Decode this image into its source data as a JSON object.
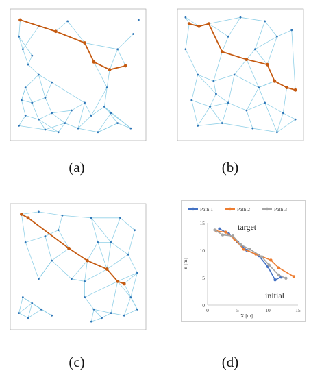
{
  "captions": {
    "a": "(a)",
    "b": "(b)",
    "c": "(c)",
    "d": "(d)"
  },
  "colors": {
    "edge": "#7ec8e3",
    "node": "#2e75b6",
    "path": "#c55a11"
  },
  "networks": {
    "a": {
      "nodes": [
        [
          0.06,
          0.07
        ],
        [
          0.05,
          0.2
        ],
        [
          0.33,
          0.16
        ],
        [
          0.55,
          0.25
        ],
        [
          0.62,
          0.4
        ],
        [
          0.74,
          0.46
        ],
        [
          0.86,
          0.43
        ],
        [
          0.08,
          0.3
        ],
        [
          0.12,
          0.42
        ],
        [
          0.2,
          0.5
        ],
        [
          0.3,
          0.56
        ],
        [
          0.1,
          0.6
        ],
        [
          0.07,
          0.7
        ],
        [
          0.15,
          0.72
        ],
        [
          0.25,
          0.68
        ],
        [
          0.1,
          0.82
        ],
        [
          0.2,
          0.85
        ],
        [
          0.3,
          0.8
        ],
        [
          0.4,
          0.88
        ],
        [
          0.5,
          0.92
        ],
        [
          0.6,
          0.82
        ],
        [
          0.7,
          0.75
        ],
        [
          0.8,
          0.88
        ],
        [
          0.9,
          0.92
        ],
        [
          0.72,
          0.6
        ],
        [
          0.8,
          0.3
        ],
        [
          0.92,
          0.18
        ],
        [
          0.42,
          0.08
        ],
        [
          0.2,
          0.12
        ],
        [
          0.15,
          0.35
        ],
        [
          0.35,
          0.95
        ],
        [
          0.55,
          0.72
        ],
        [
          0.65,
          0.95
        ],
        [
          0.75,
          0.8
        ],
        [
          0.45,
          0.78
        ],
        [
          0.25,
          0.93
        ],
        [
          0.05,
          0.9
        ],
        [
          0.96,
          0.07
        ]
      ],
      "edges": [
        [
          0,
          1
        ],
        [
          1,
          7
        ],
        [
          7,
          8
        ],
        [
          8,
          9
        ],
        [
          9,
          10
        ],
        [
          10,
          14
        ],
        [
          11,
          12
        ],
        [
          12,
          13
        ],
        [
          13,
          14
        ],
        [
          12,
          15
        ],
        [
          15,
          16
        ],
        [
          16,
          17
        ],
        [
          17,
          18
        ],
        [
          18,
          19
        ],
        [
          19,
          20
        ],
        [
          20,
          21
        ],
        [
          21,
          22
        ],
        [
          22,
          23
        ],
        [
          21,
          24
        ],
        [
          24,
          5
        ],
        [
          5,
          25
        ],
        [
          25,
          26
        ],
        [
          25,
          3
        ],
        [
          3,
          27
        ],
        [
          27,
          2
        ],
        [
          2,
          28
        ],
        [
          28,
          7
        ],
        [
          29,
          8
        ],
        [
          29,
          1
        ],
        [
          9,
          11
        ],
        [
          11,
          13
        ],
        [
          14,
          17
        ],
        [
          16,
          30
        ],
        [
          30,
          18
        ],
        [
          19,
          32
        ],
        [
          32,
          22
        ],
        [
          20,
          31
        ],
        [
          31,
          34
        ],
        [
          34,
          18
        ],
        [
          21,
          33
        ],
        [
          33,
          23
        ],
        [
          33,
          32
        ],
        [
          24,
          4
        ],
        [
          4,
          3
        ],
        [
          10,
          31
        ],
        [
          13,
          16
        ],
        [
          15,
          36
        ],
        [
          36,
          35
        ],
        [
          35,
          30
        ],
        [
          17,
          34
        ],
        [
          20,
          24
        ],
        [
          22,
          32
        ],
        [
          6,
          5
        ],
        [
          6,
          25
        ],
        [
          19,
          31
        ],
        [
          9,
          14
        ],
        [
          12,
          11
        ],
        [
          16,
          35
        ],
        [
          23,
          21
        ],
        [
          18,
          35
        ]
      ],
      "path": [
        0,
        2,
        3,
        4,
        5,
        6
      ]
    },
    "b": {
      "nodes": [
        [
          0.08,
          0.1
        ],
        [
          0.16,
          0.12
        ],
        [
          0.24,
          0.1
        ],
        [
          0.35,
          0.32
        ],
        [
          0.55,
          0.38
        ],
        [
          0.72,
          0.42
        ],
        [
          0.78,
          0.55
        ],
        [
          0.88,
          0.6
        ],
        [
          0.95,
          0.62
        ],
        [
          0.05,
          0.3
        ],
        [
          0.15,
          0.5
        ],
        [
          0.28,
          0.55
        ],
        [
          0.45,
          0.5
        ],
        [
          0.62,
          0.3
        ],
        [
          0.8,
          0.2
        ],
        [
          0.92,
          0.15
        ],
        [
          0.5,
          0.05
        ],
        [
          0.7,
          0.08
        ],
        [
          0.1,
          0.7
        ],
        [
          0.25,
          0.75
        ],
        [
          0.4,
          0.72
        ],
        [
          0.55,
          0.78
        ],
        [
          0.7,
          0.72
        ],
        [
          0.85,
          0.8
        ],
        [
          0.15,
          0.9
        ],
        [
          0.35,
          0.88
        ],
        [
          0.6,
          0.92
        ],
        [
          0.8,
          0.95
        ],
        [
          0.95,
          0.85
        ],
        [
          0.4,
          0.2
        ],
        [
          0.65,
          0.6
        ],
        [
          0.3,
          0.65
        ],
        [
          0.05,
          0.05
        ]
      ],
      "edges": [
        [
          0,
          1
        ],
        [
          1,
          2
        ],
        [
          2,
          16
        ],
        [
          16,
          17
        ],
        [
          17,
          14
        ],
        [
          14,
          15
        ],
        [
          0,
          9
        ],
        [
          9,
          10
        ],
        [
          10,
          11
        ],
        [
          11,
          12
        ],
        [
          12,
          4
        ],
        [
          4,
          13
        ],
        [
          13,
          14
        ],
        [
          5,
          14
        ],
        [
          5,
          6
        ],
        [
          6,
          7
        ],
        [
          7,
          8
        ],
        [
          8,
          15
        ],
        [
          10,
          18
        ],
        [
          18,
          19
        ],
        [
          19,
          20
        ],
        [
          20,
          21
        ],
        [
          21,
          22
        ],
        [
          22,
          23
        ],
        [
          18,
          24
        ],
        [
          24,
          25
        ],
        [
          25,
          26
        ],
        [
          26,
          27
        ],
        [
          27,
          28
        ],
        [
          23,
          28
        ],
        [
          11,
          31
        ],
        [
          31,
          20
        ],
        [
          12,
          30
        ],
        [
          30,
          22
        ],
        [
          30,
          6
        ],
        [
          19,
          25
        ],
        [
          20,
          25
        ],
        [
          21,
          26
        ],
        [
          22,
          27
        ],
        [
          23,
          27
        ],
        [
          3,
          29
        ],
        [
          29,
          16
        ],
        [
          3,
          11
        ],
        [
          12,
          20
        ],
        [
          13,
          5
        ],
        [
          6,
          30
        ],
        [
          24,
          19
        ],
        [
          31,
          19
        ],
        [
          2,
          29
        ],
        [
          13,
          17
        ],
        [
          4,
          30
        ],
        [
          0,
          32
        ],
        [
          32,
          1
        ],
        [
          10,
          31
        ],
        [
          21,
          30
        ],
        [
          23,
          7
        ]
      ],
      "path": [
        0,
        1,
        2,
        3,
        4,
        5,
        6,
        7,
        8
      ]
    },
    "c": {
      "nodes": [
        [
          0.07,
          0.07
        ],
        [
          0.12,
          0.1
        ],
        [
          0.43,
          0.35
        ],
        [
          0.57,
          0.45
        ],
        [
          0.72,
          0.52
        ],
        [
          0.8,
          0.62
        ],
        [
          0.85,
          0.64
        ],
        [
          0.2,
          0.05
        ],
        [
          0.38,
          0.08
        ],
        [
          0.6,
          0.1
        ],
        [
          0.82,
          0.1
        ],
        [
          0.93,
          0.2
        ],
        [
          0.1,
          0.3
        ],
        [
          0.25,
          0.25
        ],
        [
          0.3,
          0.45
        ],
        [
          0.45,
          0.6
        ],
        [
          0.65,
          0.3
        ],
        [
          0.75,
          0.3
        ],
        [
          0.88,
          0.4
        ],
        [
          0.95,
          0.55
        ],
        [
          0.08,
          0.75
        ],
        [
          0.15,
          0.8
        ],
        [
          0.22,
          0.85
        ],
        [
          0.3,
          0.9
        ],
        [
          0.12,
          0.92
        ],
        [
          0.05,
          0.88
        ],
        [
          0.55,
          0.75
        ],
        [
          0.62,
          0.85
        ],
        [
          0.68,
          0.92
        ],
        [
          0.75,
          0.88
        ],
        [
          0.85,
          0.9
        ],
        [
          0.95,
          0.85
        ],
        [
          0.55,
          0.62
        ],
        [
          0.9,
          0.75
        ],
        [
          0.35,
          0.2
        ],
        [
          0.2,
          0.6
        ],
        [
          0.6,
          0.95
        ]
      ],
      "edges": [
        [
          0,
          7
        ],
        [
          7,
          8
        ],
        [
          8,
          9
        ],
        [
          9,
          10
        ],
        [
          10,
          11
        ],
        [
          0,
          12
        ],
        [
          12,
          13
        ],
        [
          13,
          34
        ],
        [
          34,
          8
        ],
        [
          13,
          14
        ],
        [
          14,
          15
        ],
        [
          15,
          3
        ],
        [
          3,
          16
        ],
        [
          16,
          9
        ],
        [
          16,
          17
        ],
        [
          17,
          10
        ],
        [
          17,
          18
        ],
        [
          18,
          11
        ],
        [
          18,
          19
        ],
        [
          19,
          6
        ],
        [
          4,
          18
        ],
        [
          5,
          19
        ],
        [
          2,
          14
        ],
        [
          2,
          34
        ],
        [
          20,
          21
        ],
        [
          21,
          22
        ],
        [
          22,
          23
        ],
        [
          20,
          25
        ],
        [
          25,
          24
        ],
        [
          24,
          21
        ],
        [
          24,
          22
        ],
        [
          23,
          21
        ],
        [
          26,
          27
        ],
        [
          27,
          28
        ],
        [
          28,
          29
        ],
        [
          29,
          30
        ],
        [
          30,
          31
        ],
        [
          31,
          33
        ],
        [
          33,
          19
        ],
        [
          26,
          32
        ],
        [
          32,
          4
        ],
        [
          32,
          15
        ],
        [
          5,
          33
        ],
        [
          27,
          29
        ],
        [
          29,
          5
        ],
        [
          28,
          36
        ],
        [
          36,
          27
        ],
        [
          12,
          35
        ],
        [
          35,
          14
        ],
        [
          22,
          20
        ],
        [
          3,
          32
        ],
        [
          17,
          4
        ],
        [
          14,
          35
        ],
        [
          30,
          33
        ],
        [
          26,
          5
        ],
        [
          9,
          17
        ],
        [
          25,
          21
        ],
        [
          31,
          6
        ],
        [
          16,
          4
        ]
      ],
      "path": [
        0,
        1,
        2,
        3,
        4,
        5,
        6
      ]
    }
  },
  "chart_data": {
    "type": "line",
    "series": [
      {
        "name": "Path 1",
        "color": "#4472c4",
        "points": [
          [
            2,
            13.9
          ],
          [
            3.5,
            13
          ],
          [
            5,
            11.5
          ],
          [
            6.5,
            10
          ],
          [
            8.5,
            9
          ],
          [
            10,
            7
          ],
          [
            11.2,
            4.6
          ],
          [
            12.2,
            5.1
          ]
        ]
      },
      {
        "name": "Path 2",
        "color": "#ed7d31",
        "points": [
          [
            1.5,
            13.5
          ],
          [
            3,
            13.3
          ],
          [
            4.5,
            12
          ],
          [
            6,
            10.2
          ],
          [
            8,
            9.3
          ],
          [
            10.5,
            8.2
          ],
          [
            11.8,
            6.8
          ],
          [
            14.3,
            5.2
          ]
        ]
      },
      {
        "name": "Path 3",
        "color": "#a5a5a5",
        "points": [
          [
            1.2,
            13.7
          ],
          [
            2.5,
            12.8
          ],
          [
            4.2,
            12.6
          ],
          [
            5.5,
            11
          ],
          [
            7,
            10.2
          ],
          [
            9,
            8.8
          ],
          [
            10.2,
            7.3
          ],
          [
            11.8,
            5.5
          ],
          [
            13,
            4.9
          ]
        ]
      }
    ],
    "xlabel": "X [m]",
    "ylabel": "Y [m]",
    "xlim": [
      0,
      15
    ],
    "ylim": [
      0,
      15
    ],
    "xticks": [
      "0",
      "5",
      "10",
      "15"
    ],
    "yticks": [
      "0",
      "5",
      "10",
      "15"
    ],
    "annotations": {
      "target": "target",
      "initial": "initial"
    },
    "legend_position": "top"
  }
}
